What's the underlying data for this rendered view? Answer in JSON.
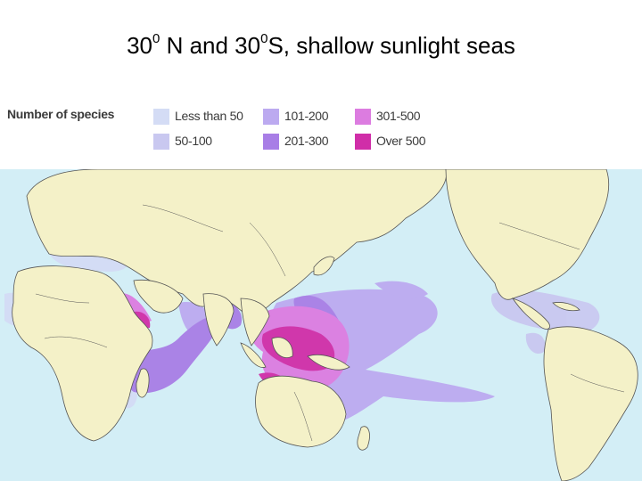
{
  "title": {
    "parts": [
      {
        "text": "30",
        "sup": false
      },
      {
        "text": "0",
        "sup": true
      },
      {
        "text": " N and 30",
        "sup": false
      },
      {
        "text": "0",
        "sup": true
      },
      {
        "text": "S, shallow sunlight seas",
        "sup": false
      }
    ]
  },
  "legend": {
    "heading": "Number of species",
    "items": [
      {
        "label": "Less than 50",
        "color": "#d4dcf5"
      },
      {
        "label": "50-100",
        "color": "#c9c8f0"
      },
      {
        "label": "101-200",
        "color": "#bcaaf0"
      },
      {
        "label": "201-300",
        "color": "#a87ee6"
      },
      {
        "label": "301-500",
        "color": "#dc7ce0"
      },
      {
        "label": "Over 500",
        "color": "#d02ea8"
      }
    ]
  },
  "map": {
    "ocean_color": "#d3eef6",
    "land_color": "#f4f1c8",
    "border_color": "#555555"
  }
}
